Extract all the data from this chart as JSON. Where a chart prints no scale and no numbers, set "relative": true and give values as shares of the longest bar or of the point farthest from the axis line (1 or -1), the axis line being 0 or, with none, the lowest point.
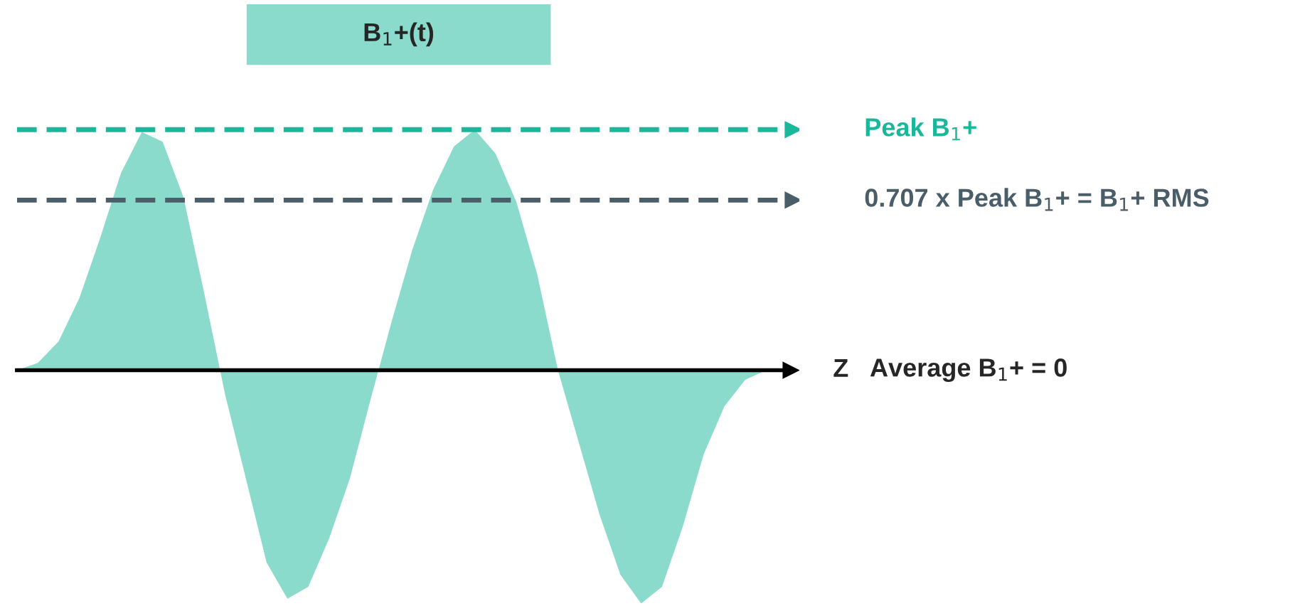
{
  "chart_data": {
    "type": "area",
    "relative": true,
    "title": "B$_{1}$+(t)",
    "xlabel": "Z",
    "annotations": [
      "Average B$_{1}$+ = 0"
    ],
    "categories": [
      null,
      null,
      null,
      null,
      null,
      null,
      null,
      null,
      null,
      null,
      null,
      null,
      null,
      null,
      null,
      null,
      null,
      null,
      null,
      null,
      null,
      null,
      null,
      null,
      null,
      null,
      null,
      null,
      null,
      null,
      null,
      null,
      null,
      null,
      null,
      null,
      null
    ],
    "series": [
      {
        "color": "#8adbcb",
        "values": [
          0,
          0.03,
          0.12,
          0.3,
          0.55,
          0.82,
          0.99,
          0.95,
          0.72,
          0.32,
          -0.1,
          -0.45,
          -0.8,
          -0.95,
          -0.9,
          -0.7,
          -0.45,
          -0.12,
          0.2,
          0.5,
          0.75,
          0.93,
          1.0,
          0.9,
          0.7,
          0.4,
          0.0,
          -0.3,
          -0.6,
          -0.85,
          -0.97,
          -0.9,
          -0.65,
          -0.35,
          -0.15,
          -0.04,
          0
        ]
      }
    ],
    "ref_lines": [
      {
        "axis": "y",
        "value": 1,
        "label": "Peak B$_{1}$+",
        "color": "#19b89a",
        "line_style": "dashed"
      },
      {
        "axis": "y",
        "value": 0.707,
        "label": "0.707 x Peak B$_{1}$+ = B$_{1}$+ RMS",
        "color": "#4a5e6a",
        "line_style": "dashed"
      }
    ]
  }
}
